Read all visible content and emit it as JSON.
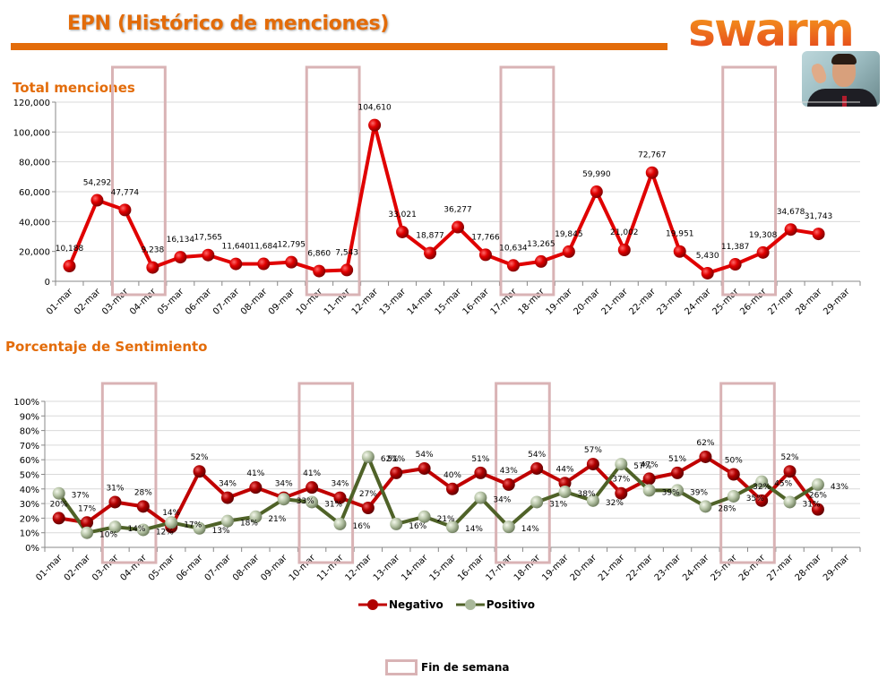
{
  "header": {
    "title": "EPN (Histórico de menciones)",
    "logo_text": "swarm",
    "accent_color": "#e36c0a"
  },
  "chart_data": [
    {
      "type": "line",
      "title": "Total menciones",
      "categories": [
        "01-mar",
        "02-mar",
        "03-mar",
        "04-mar",
        "05-mar",
        "06-mar",
        "07-mar",
        "08-mar",
        "09-mar",
        "10-mar",
        "11-mar",
        "12-mar",
        "13-mar",
        "14-mar",
        "15-mar",
        "16-mar",
        "17-mar",
        "18-mar",
        "19-mar",
        "20-mar",
        "21-mar",
        "22-mar",
        "23-mar",
        "24-mar",
        "25-mar",
        "26-mar",
        "27-mar",
        "28-mar",
        "29-mar"
      ],
      "series": [
        {
          "name": "Total menciones",
          "color": "#e00000",
          "values": [
            10188,
            54292,
            47774,
            9238,
            16134,
            17565,
            11640,
            11684,
            12795,
            6860,
            7543,
            104610,
            33021,
            18877,
            36277,
            17766,
            10634,
            13265,
            19845,
            59990,
            21002,
            72767,
            19951,
            5430,
            11387,
            19308,
            34678,
            31743,
            null
          ],
          "labels": [
            "10,188",
            "54,292",
            "47,774",
            "9,238",
            "16,134",
            "17,565",
            "11,640",
            "11,684",
            "12,795",
            "6,860",
            "7,543",
            "104,610",
            "33,021",
            "18,877",
            "36,277",
            "17,766",
            "10,634",
            "13,265",
            "19,845",
            "59,990",
            "21,002",
            "72,767",
            "19,951",
            "5,430",
            "11,387",
            "19,308",
            "34,678",
            "31,743",
            ""
          ]
        }
      ],
      "yticks": [
        "0",
        "20,000",
        "40,000",
        "60,000",
        "80,000",
        "100,000",
        "120,000"
      ],
      "ylim": [
        0,
        120000
      ],
      "grid": true,
      "weekend_ranges": [
        [
          "03-mar",
          "04-mar"
        ],
        [
          "10-mar",
          "11-mar"
        ],
        [
          "17-mar",
          "18-mar"
        ],
        [
          "25-mar",
          "26-mar"
        ]
      ]
    },
    {
      "type": "line",
      "title": "Porcentaje de Sentimiento",
      "categories": [
        "01-mar",
        "02-mar",
        "03-mar",
        "04-mar",
        "05-mar",
        "06-mar",
        "07-mar",
        "08-mar",
        "09-mar",
        "10-mar",
        "11-mar",
        "12-mar",
        "13-mar",
        "14-mar",
        "15-mar",
        "16-mar",
        "17-mar",
        "18-mar",
        "19-mar",
        "20-mar",
        "21-mar",
        "22-mar",
        "23-mar",
        "24-mar",
        "25-mar",
        "26-mar",
        "27-mar",
        "28-mar",
        "29-mar"
      ],
      "series": [
        {
          "name": "Negativo",
          "color": "#c00000",
          "values": [
            20,
            17,
            31,
            28,
            14,
            52,
            34,
            41,
            34,
            41,
            34,
            27,
            51,
            54,
            40,
            51,
            43,
            54,
            44,
            57,
            37,
            47,
            51,
            62,
            50,
            32,
            52,
            26,
            null
          ]
        },
        {
          "name": "Positivo",
          "color": "#4f6228",
          "values": [
            37,
            10,
            14,
            12,
            17,
            13,
            18,
            21,
            33,
            31,
            16,
            62,
            16,
            21,
            14,
            34,
            14,
            31,
            38,
            32,
            57,
            39,
            39,
            28,
            35,
            45,
            31,
            43,
            null
          ]
        }
      ],
      "yticks": [
        "0%",
        "10%",
        "20%",
        "30%",
        "40%",
        "50%",
        "60%",
        "70%",
        "80%",
        "90%",
        "100%"
      ],
      "ylim": [
        0,
        100
      ],
      "grid": true,
      "legend": "bottom",
      "weekend_ranges": [
        [
          "03-mar",
          "04-mar"
        ],
        [
          "10-mar",
          "11-mar"
        ],
        [
          "17-mar",
          "18-mar"
        ],
        [
          "25-mar",
          "26-mar"
        ]
      ]
    }
  ],
  "legend": {
    "negativo": "Negativo",
    "positivo": "Positivo",
    "weekend": "Fin de semana",
    "weekend_color": "#d9b3b5"
  }
}
